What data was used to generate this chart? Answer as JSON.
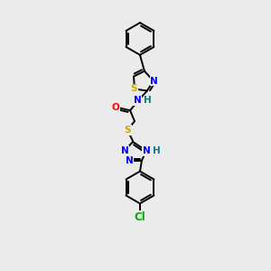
{
  "background_color": "#ebebeb",
  "atom_colors": {
    "N": "#0000ff",
    "O": "#ff0000",
    "S": "#ccaa00",
    "Cl": "#00aa00",
    "H": "#008080"
  },
  "bond_color": "#000000",
  "figsize": [
    3.0,
    3.0
  ],
  "dpi": 100,
  "lw": 1.4,
  "fs": 7.5
}
